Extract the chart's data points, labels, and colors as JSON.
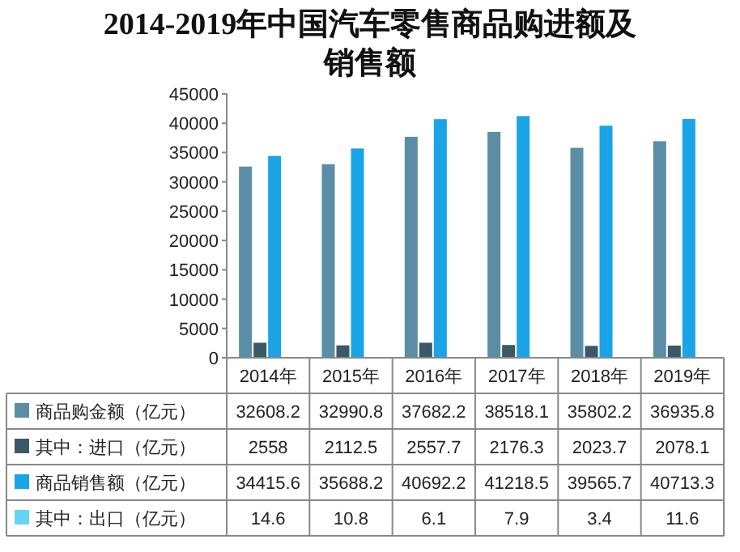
{
  "chart_data": {
    "type": "bar",
    "title": "2014-2019年中国汽车零售商品购进额及销售额",
    "categories": [
      "2014年",
      "2015年",
      "2016年",
      "2017年",
      "2018年",
      "2019年"
    ],
    "series": [
      {
        "name": "商品购金额（亿元）",
        "color": "#5b8ea6",
        "values": [
          32608.2,
          32990.8,
          37682.2,
          38518.1,
          35802.2,
          36935.8
        ]
      },
      {
        "name": "其中：进口（亿元）",
        "color": "#3b5866",
        "values": [
          2558,
          2112.5,
          2557.7,
          2176.3,
          2023.7,
          2078.1
        ]
      },
      {
        "name": "商品销售额（亿元）",
        "color": "#1aa3e6",
        "values": [
          34415.6,
          35688.2,
          40692.2,
          41218.5,
          39565.7,
          40713.3
        ]
      },
      {
        "name": "其中：出口（亿元）",
        "color": "#66d4f5",
        "values": [
          14.6,
          10.8,
          6.1,
          7.9,
          3.4,
          11.6
        ]
      }
    ],
    "ylim": [
      0,
      45000
    ],
    "yticks": [
      0,
      5000,
      10000,
      15000,
      20000,
      25000,
      30000,
      35000,
      40000,
      45000
    ],
    "grid": false,
    "data_labels": true,
    "legend": "bottom"
  }
}
